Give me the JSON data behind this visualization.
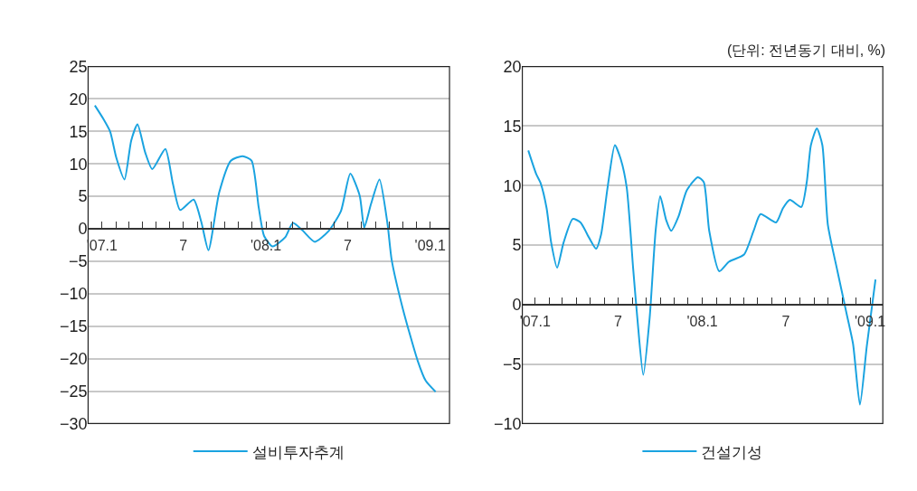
{
  "chart_data": [
    {
      "type": "line",
      "xlim": [
        "2006-12-01",
        "2009-02-13"
      ],
      "ylim": [
        -30,
        25
      ],
      "xticks": [
        {
          "value": "2007-01",
          "label": "'07.1"
        },
        {
          "value": "2007-02",
          "label": null
        },
        {
          "value": "2007-03",
          "label": null
        },
        {
          "value": "2007-04",
          "label": null
        },
        {
          "value": "2007-05",
          "label": null
        },
        {
          "value": "2007-06",
          "label": null
        },
        {
          "value": "2007-07",
          "label": "7"
        },
        {
          "value": "2007-08",
          "label": null
        },
        {
          "value": "2007-09",
          "label": null
        },
        {
          "value": "2007-10",
          "label": null
        },
        {
          "value": "2007-11",
          "label": null
        },
        {
          "value": "2007-12",
          "label": null
        },
        {
          "value": "2008-01",
          "label": "'08.1"
        },
        {
          "value": "2008-02",
          "label": null
        },
        {
          "value": "2008-03",
          "label": null
        },
        {
          "value": "2008-04",
          "label": null
        },
        {
          "value": "2008-05",
          "label": null
        },
        {
          "value": "2008-06",
          "label": null
        },
        {
          "value": "2008-07",
          "label": "7"
        },
        {
          "value": "2008-08",
          "label": null
        },
        {
          "value": "2008-09",
          "label": null
        },
        {
          "value": "2008-10",
          "label": null
        },
        {
          "value": "2008-11",
          "label": null
        },
        {
          "value": "2008-12",
          "label": null
        },
        {
          "value": "2009-01",
          "label": "'09.1"
        }
      ],
      "yticks": [
        -30,
        -25,
        -20,
        -15,
        -10,
        -5,
        0,
        5,
        10,
        15,
        20,
        25
      ],
      "grid": "y",
      "legend": "bottom",
      "marker": "none",
      "line_style": "solid",
      "x": [
        "2006-12-16",
        "2007-01-06",
        "2007-01-19",
        "2007-02-02",
        "2007-02-20",
        "2007-03-07",
        "2007-03-21",
        "2007-04-07",
        "2007-04-23",
        "2007-05-22",
        "2007-06-08",
        "2007-06-24",
        "2007-07-24",
        "2007-08-10",
        "2007-08-26",
        "2007-09-19",
        "2007-10-15",
        "2007-11-10",
        "2007-11-30",
        "2007-12-16",
        "2007-12-28",
        "2008-01-16",
        "2008-02-13",
        "2008-03-01",
        "2008-03-22",
        "2008-04-19",
        "2008-05-19",
        "2008-06-16",
        "2008-07-07",
        "2008-07-28",
        "2008-08-07",
        "2008-08-22",
        "2008-09-10",
        "2008-09-28",
        "2008-10-07",
        "2008-11-01",
        "2008-12-04",
        "2008-12-22",
        "2009-01-13"
      ],
      "series": [
        {
          "name": "설비투자추계",
          "color": "#1aa3e0",
          "values": [
            19.0,
            16.7,
            15.0,
            10.9,
            7.6,
            13.6,
            16.1,
            11.8,
            9.2,
            12.3,
            6.9,
            2.9,
            4.5,
            1.1,
            -3.3,
            5.6,
            10.5,
            11.2,
            10.5,
            3.3,
            -1.1,
            -2.7,
            -1.3,
            0.9,
            -0.2,
            -2.0,
            -0.4,
            2.7,
            8.5,
            5.1,
            0.2,
            3.8,
            7.6,
            0.7,
            -4.7,
            -12.3,
            -20.3,
            -23.4,
            -25.1
          ]
        }
      ]
    },
    {
      "type": "line",
      "xlim": [
        "2006-12-04",
        "2009-01-29"
      ],
      "ylim": [
        -10,
        20
      ],
      "xticks": [
        {
          "value": "2007-01",
          "label": "'07.1"
        },
        {
          "value": "2007-02",
          "label": null
        },
        {
          "value": "2007-03",
          "label": null
        },
        {
          "value": "2007-04",
          "label": null
        },
        {
          "value": "2007-05",
          "label": null
        },
        {
          "value": "2007-06",
          "label": null
        },
        {
          "value": "2007-07",
          "label": "7"
        },
        {
          "value": "2007-08",
          "label": null
        },
        {
          "value": "2007-09",
          "label": null
        },
        {
          "value": "2007-10",
          "label": null
        },
        {
          "value": "2007-11",
          "label": null
        },
        {
          "value": "2007-12",
          "label": null
        },
        {
          "value": "2008-01",
          "label": "'08.1"
        },
        {
          "value": "2008-02",
          "label": null
        },
        {
          "value": "2008-03",
          "label": null
        },
        {
          "value": "2008-04",
          "label": null
        },
        {
          "value": "2008-05",
          "label": null
        },
        {
          "value": "2008-06",
          "label": null
        },
        {
          "value": "2008-07",
          "label": "7"
        },
        {
          "value": "2008-08",
          "label": null
        },
        {
          "value": "2008-09",
          "label": null
        },
        {
          "value": "2008-10",
          "label": null
        },
        {
          "value": "2008-11",
          "label": null
        },
        {
          "value": "2008-12",
          "label": null
        },
        {
          "value": "2009-01",
          "label": "'09.1"
        }
      ],
      "yticks": [
        -10,
        -5,
        0,
        5,
        10,
        15,
        20
      ],
      "grid": "y",
      "legend": "bottom",
      "marker": "none",
      "line_style": "solid",
      "annotations": [
        "(단위: 전년동기 대비, %)"
      ],
      "x": [
        "2006-12-17",
        "2007-01-03",
        "2007-01-13",
        "2007-01-26",
        "2007-02-05",
        "2007-02-18",
        "2007-03-04",
        "2007-03-24",
        "2007-04-10",
        "2007-04-29",
        "2007-05-14",
        "2007-05-25",
        "2007-06-08",
        "2007-06-24",
        "2007-07-07",
        "2007-07-20",
        "2007-08-03",
        "2007-08-12",
        "2007-08-25",
        "2007-09-08",
        "2007-09-21",
        "2007-10-01",
        "2007-10-14",
        "2007-10-25",
        "2007-11-10",
        "2007-11-28",
        "2007-12-22",
        "2008-01-04",
        "2008-01-16",
        "2008-02-07",
        "2008-02-28",
        "2008-04-01",
        "2008-04-22",
        "2008-05-07",
        "2008-06-10",
        "2008-06-25",
        "2008-07-10",
        "2008-08-04",
        "2008-08-16",
        "2008-08-25",
        "2008-09-07",
        "2008-09-19",
        "2008-10-01",
        "2008-10-22",
        "2008-11-10",
        "2008-11-25",
        "2008-12-10",
        "2008-12-25",
        "2009-01-13"
      ],
      "series": [
        {
          "name": "건설기성",
          "color": "#1aa3e0",
          "values": [
            12.95,
            11.0,
            10.2,
            8.1,
            5.2,
            3.1,
            5.2,
            7.2,
            6.9,
            5.6,
            4.7,
            5.9,
            9.8,
            13.4,
            12.2,
            9.8,
            3.0,
            -1.1,
            -5.9,
            -1.1,
            6.2,
            9.1,
            7.1,
            6.2,
            7.4,
            9.6,
            10.7,
            10.3,
            6.2,
            2.8,
            3.6,
            4.2,
            6.2,
            7.6,
            6.9,
            8.1,
            8.8,
            8.2,
            10.3,
            13.4,
            14.8,
            13.4,
            6.7,
            2.8,
            -0.6,
            -3.3,
            -8.4,
            -3.5,
            2.1
          ]
        }
      ]
    }
  ]
}
